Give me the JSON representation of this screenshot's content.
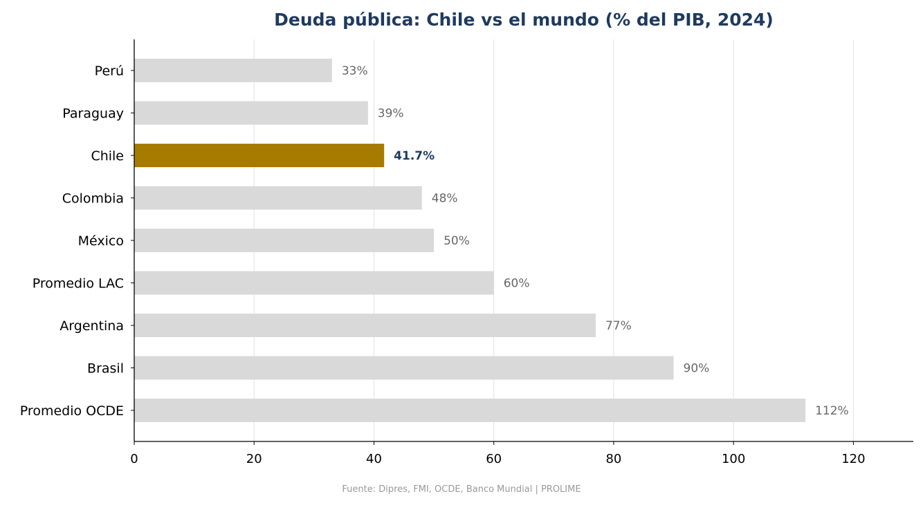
{
  "chart_data": {
    "type": "bar",
    "orientation": "horizontal",
    "title": "Deuda pública: Chile vs el mundo (% del PIB, 2024)",
    "categories": [
      "Perú",
      "Paraguay",
      "Chile",
      "Colombia",
      "México",
      "Promedio LAC",
      "Argentina",
      "Brasil",
      "Promedio OCDE"
    ],
    "values": [
      33,
      39,
      41.7,
      48,
      50,
      60,
      77,
      90,
      112
    ],
    "value_labels": [
      "33%",
      "39%",
      "41.7%",
      "48%",
      "50%",
      "60%",
      "77%",
      "90%",
      "112%"
    ],
    "highlight": "Chile",
    "xlabel": "",
    "ylabel": "",
    "xlim": [
      0,
      130
    ],
    "xticks": [
      0,
      20,
      40,
      60,
      80,
      100,
      120
    ],
    "grid": "vertical",
    "source": "Fuente: Dipres, FMI, OCDE, Banco Mundial  |  PROLIME"
  },
  "colors": {
    "bar": "#d9d9d9",
    "highlight_bar": "#a67c00",
    "title": "#1f3a5f",
    "label": "#666666",
    "highlight_label": "#1f3a5f",
    "grid": "#e6e6e6",
    "axis": "#000000"
  }
}
